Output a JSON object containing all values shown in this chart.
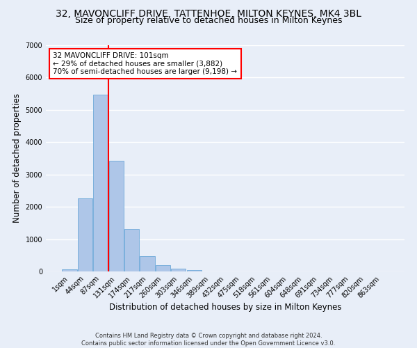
{
  "title_line1": "32, MAVONCLIFF DRIVE, TATTENHOE, MILTON KEYNES, MK4 3BL",
  "title_line2": "Size of property relative to detached houses in Milton Keynes",
  "xlabel": "Distribution of detached houses by size in Milton Keynes",
  "ylabel": "Number of detached properties",
  "footer_line1": "Contains HM Land Registry data © Crown copyright and database right 2024.",
  "footer_line2": "Contains public sector information licensed under the Open Government Licence v3.0.",
  "bin_labels": [
    "1sqm",
    "44sqm",
    "87sqm",
    "131sqm",
    "174sqm",
    "217sqm",
    "260sqm",
    "303sqm",
    "346sqm",
    "389sqm",
    "432sqm",
    "475sqm",
    "518sqm",
    "561sqm",
    "604sqm",
    "648sqm",
    "691sqm",
    "734sqm",
    "777sqm",
    "820sqm",
    "863sqm"
  ],
  "bar_heights": [
    75,
    2270,
    5480,
    3420,
    1310,
    480,
    195,
    90,
    50,
    0,
    0,
    0,
    0,
    0,
    0,
    0,
    0,
    0,
    0,
    0,
    0
  ],
  "bar_color": "#aec6e8",
  "bar_edge_color": "#5a9fd4",
  "vline_color": "red",
  "annotation_text": "32 MAVONCLIFF DRIVE: 101sqm\n← 29% of detached houses are smaller (3,882)\n70% of semi-detached houses are larger (9,198) →",
  "annotation_box_color": "white",
  "annotation_box_edge_color": "red",
  "ylim": [
    0,
    7000
  ],
  "yticks": [
    0,
    1000,
    2000,
    3000,
    4000,
    5000,
    6000,
    7000
  ],
  "background_color": "#e8eef8",
  "axes_background_color": "#e8eef8",
  "grid_color": "white",
  "title_fontsize": 10,
  "subtitle_fontsize": 9,
  "tick_fontsize": 7,
  "ylabel_fontsize": 8.5,
  "xlabel_fontsize": 8.5,
  "annotation_fontsize": 7.5,
  "footer_fontsize": 6.0
}
